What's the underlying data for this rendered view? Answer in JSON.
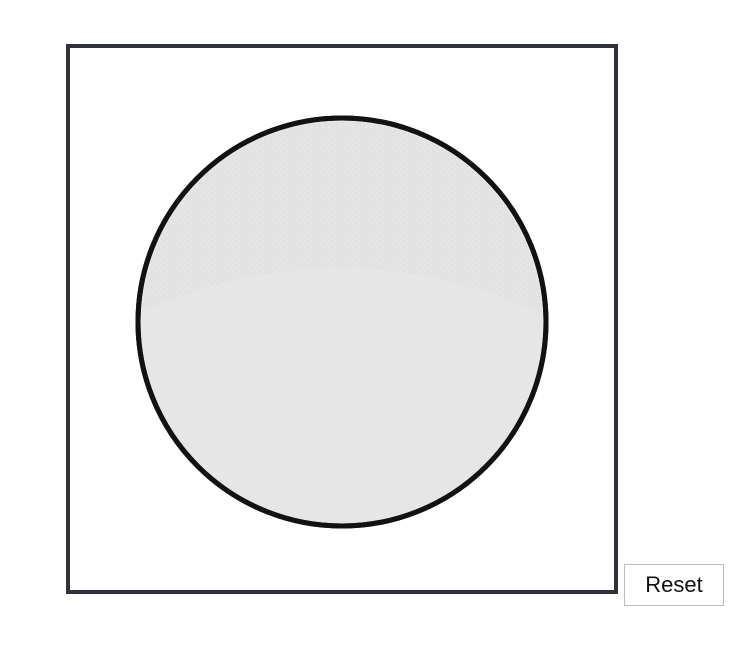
{
  "reset_button": {
    "label": "Reset"
  },
  "canvas": {
    "circle_fill": "#e6e6e6",
    "circle_stroke": "#121212",
    "frame_border": "#2f3239"
  }
}
